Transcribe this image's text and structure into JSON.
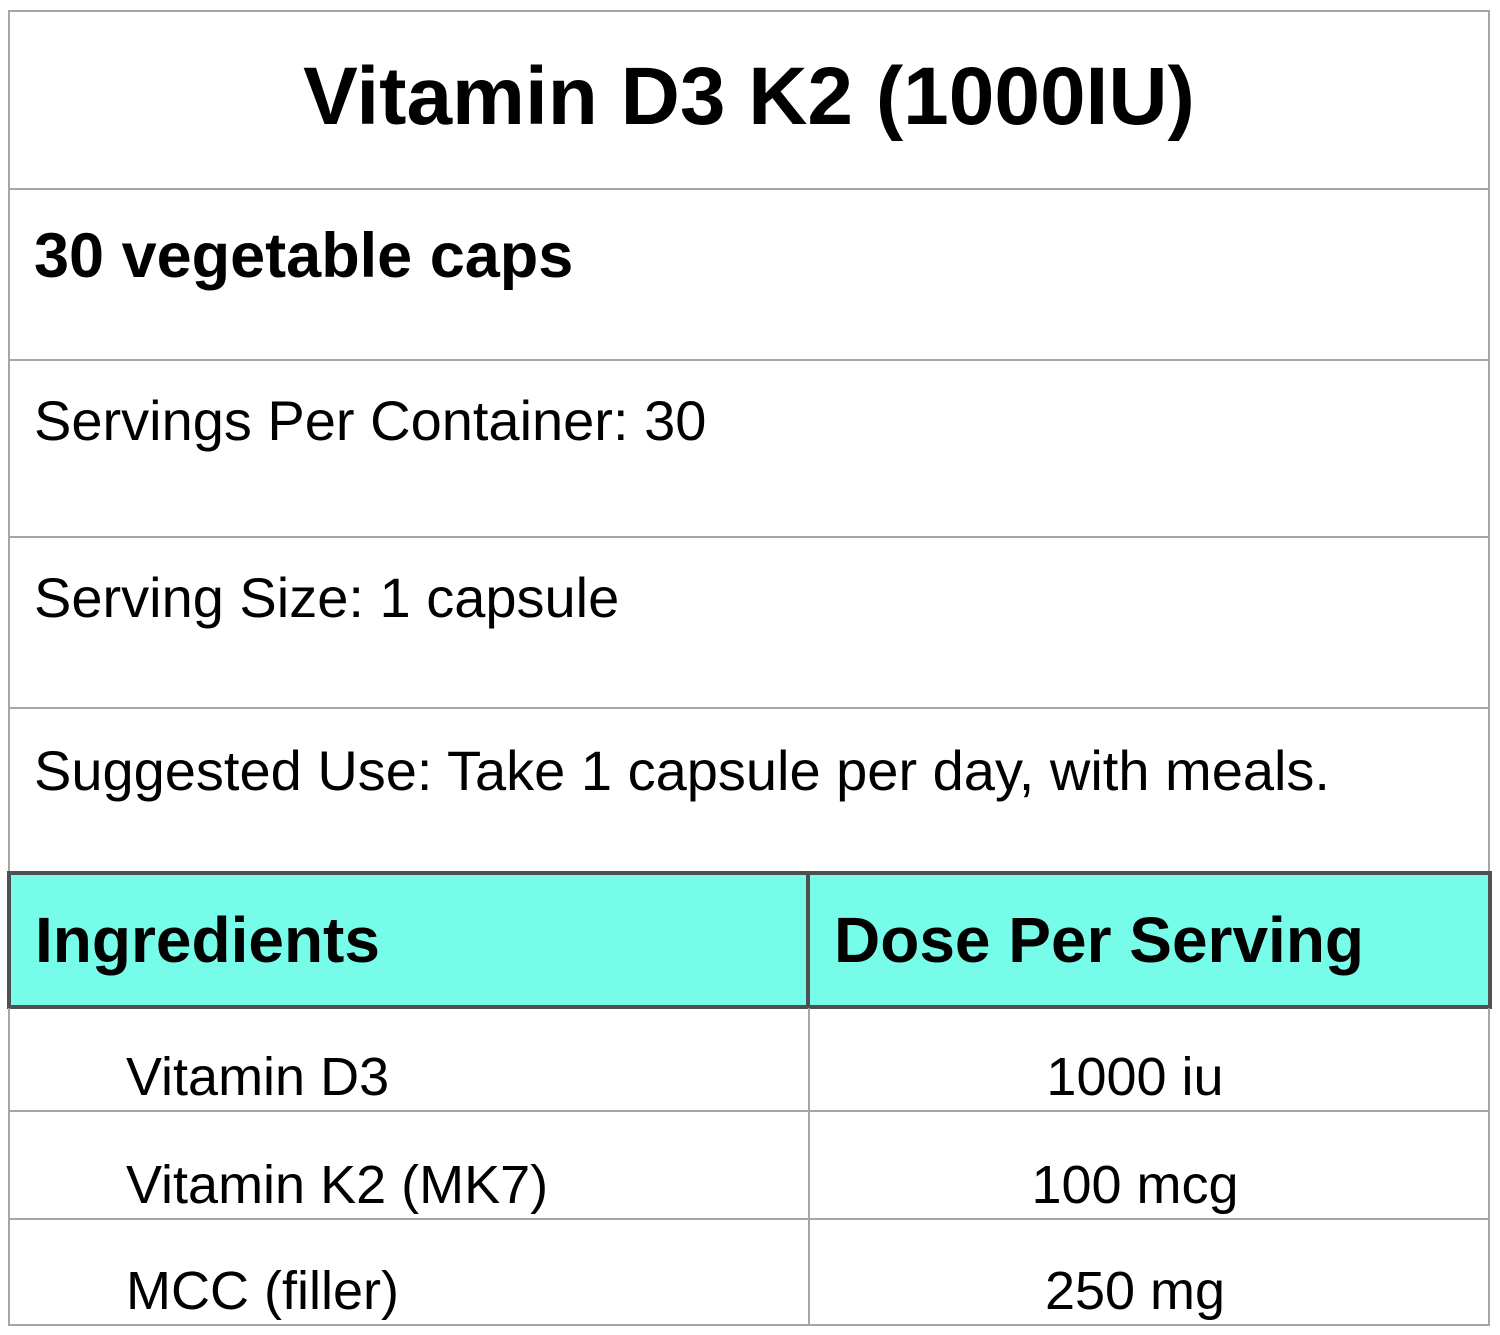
{
  "title": "Vitamin D3 K2 (1000IU)",
  "count": "30 vegetable caps",
  "servings_per_container": "Servings Per Container: 30",
  "serving_size": "Serving Size: 1 capsule",
  "suggested_use": "Suggested Use: Take 1 capsule per day, with meals.",
  "table": {
    "header_color": "#76fce8",
    "headers": [
      "Ingredients",
      "Dose Per Serving"
    ],
    "rows": [
      {
        "ingredient": "Vitamin D3",
        "dose": "1000 iu"
      },
      {
        "ingredient": "Vitamin K2 (MK7)",
        "dose": "100 mcg"
      },
      {
        "ingredient": "MCC (filler)",
        "dose": "250 mg"
      }
    ]
  }
}
